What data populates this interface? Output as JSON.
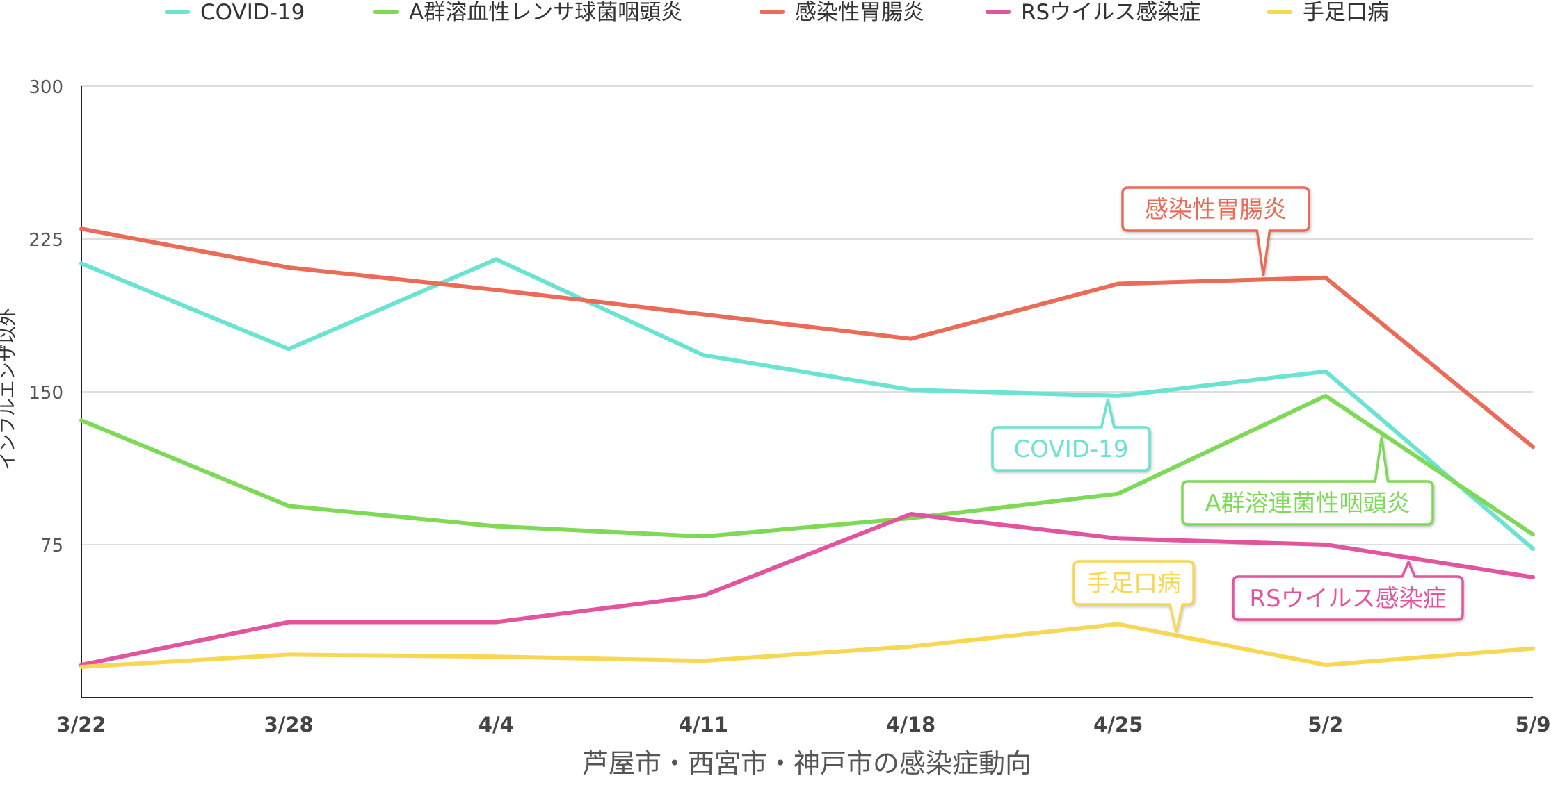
{
  "chart_data": {
    "type": "line",
    "title": "",
    "xlabel": "芦屋市・西宮市・神戸市の感染症動向",
    "ylabel": "インフルエンザ以外",
    "categories": [
      "3/22",
      "3/28",
      "4/4",
      "4/11",
      "4/18",
      "4/25",
      "5/2",
      "5/9"
    ],
    "ylim": [
      0,
      300
    ],
    "yticks": [
      75,
      150,
      225,
      300
    ],
    "grid": true,
    "legend_position": "top",
    "series": [
      {
        "name": "COVID-19",
        "color": "#6ae3d2",
        "values": [
          213,
          171,
          215,
          168,
          151,
          148,
          160,
          73
        ]
      },
      {
        "name": "A群溶血性レンサ球菌咽頭炎",
        "color": "#7ed957",
        "values": [
          136,
          94,
          84,
          79,
          88,
          100,
          148,
          80
        ]
      },
      {
        "name": "感染性胃腸炎",
        "color": "#ea6b57",
        "values": [
          230,
          211,
          200,
          188,
          176,
          203,
          206,
          123
        ]
      },
      {
        "name": "RSウイルス感染症",
        "color": "#e2559e",
        "values": [
          16,
          37,
          37,
          50,
          90,
          78,
          75,
          59
        ]
      },
      {
        "name": "手足口病",
        "color": "#f7d855",
        "values": [
          15,
          21,
          20,
          18,
          25,
          36,
          16,
          24
        ]
      }
    ],
    "annotations": [
      {
        "text": "感染性胃腸炎",
        "series": "感染性胃腸炎",
        "pointer_x": 5.7,
        "side": "above"
      },
      {
        "text": "COVID-19",
        "series": "COVID-19",
        "pointer_x": 4.95,
        "side": "below"
      },
      {
        "text": "A群溶連菌性咽頭炎",
        "series": "A群溶血性レンサ球菌咽頭炎",
        "pointer_x": 6.27,
        "side": "below"
      },
      {
        "text": "手足口病",
        "series": "手足口病",
        "pointer_x": 5.28,
        "side": "above"
      },
      {
        "text": "RSウイルス感染症",
        "series": "RSウイルス感染症",
        "pointer_x": 6.4,
        "side": "below"
      }
    ]
  }
}
